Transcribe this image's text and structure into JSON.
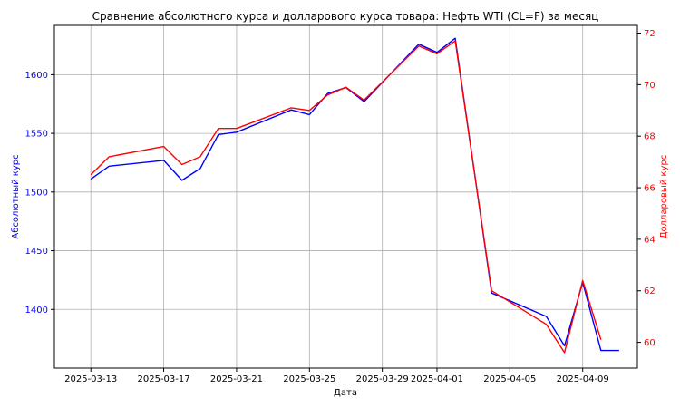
{
  "chart_data": {
    "type": "line",
    "title": "Сравнение абсолютного курса и долларового курса товара: Нефть WTI (CL=F) за месяц",
    "xlabel": "Дата",
    "ylabel_left": "Абсолютный курс",
    "ylabel_right": "Долларовый курс",
    "grid": true,
    "x_range": [
      "2025-03-11",
      "2025-04-12"
    ],
    "x_ticks": [
      "2025-03-13",
      "2025-03-17",
      "2025-03-21",
      "2025-03-25",
      "2025-03-29",
      "2025-04-01",
      "2025-04-05",
      "2025-04-09"
    ],
    "y_left_range": [
      1350,
      1642
    ],
    "y_left_ticks": [
      1400,
      1450,
      1500,
      1550,
      1600
    ],
    "y_right_range": [
      59.0,
      72.3
    ],
    "y_right_ticks": [
      60,
      62,
      64,
      66,
      68,
      70,
      72
    ],
    "colors": {
      "left": "#0000ff",
      "right": "#ff0000"
    },
    "series": [
      {
        "axis": "left",
        "dates": [
          "2025-03-13",
          "2025-03-14",
          "2025-03-17",
          "2025-03-18",
          "2025-03-19",
          "2025-03-20",
          "2025-03-21",
          "2025-03-24",
          "2025-03-25",
          "2025-03-26",
          "2025-03-27",
          "2025-03-28",
          "2025-03-31",
          "2025-04-01",
          "2025-04-02",
          "2025-04-04",
          "2025-04-07",
          "2025-04-08",
          "2025-04-09",
          "2025-04-10",
          "2025-04-11"
        ],
        "values": [
          1511,
          1522,
          1527,
          1510,
          1520,
          1549,
          1551,
          1570,
          1566,
          1584,
          1589,
          1577,
          1626,
          1619,
          1631,
          1414,
          1394,
          1369,
          1423,
          1365,
          1365
        ]
      },
      {
        "axis": "right",
        "dates": [
          "2025-03-13",
          "2025-03-14",
          "2025-03-17",
          "2025-03-18",
          "2025-03-19",
          "2025-03-20",
          "2025-03-21",
          "2025-03-24",
          "2025-03-25",
          "2025-03-26",
          "2025-03-27",
          "2025-03-28",
          "2025-03-31",
          "2025-04-01",
          "2025-04-02",
          "2025-04-04",
          "2025-04-07",
          "2025-04-08",
          "2025-04-09",
          "2025-04-10"
        ],
        "values": [
          66.5,
          67.2,
          67.6,
          66.9,
          67.2,
          68.3,
          68.3,
          69.1,
          69.0,
          69.6,
          69.9,
          69.4,
          71.5,
          71.2,
          71.7,
          62.0,
          60.7,
          59.6,
          62.4,
          60.1
        ]
      }
    ]
  }
}
